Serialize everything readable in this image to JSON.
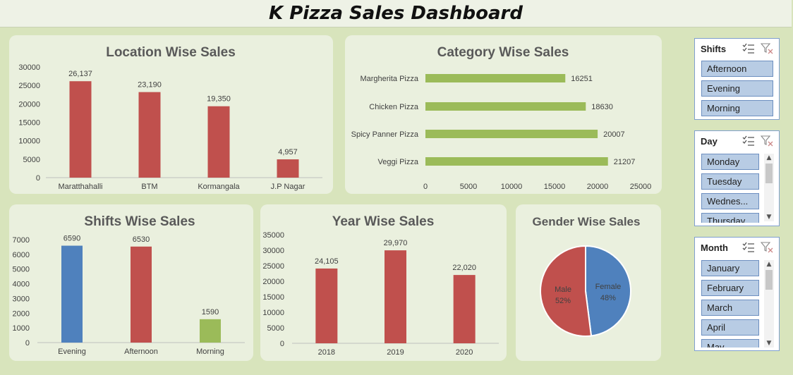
{
  "dashboard_title": "K Pizza Sales Dashboard",
  "chart_data": [
    {
      "id": "location",
      "type": "bar",
      "title": "Location Wise Sales",
      "categories": [
        "Maratthahalli",
        "BTM",
        "Kormangala",
        "J.P Nagar"
      ],
      "values": [
        26137,
        23190,
        19350,
        4957
      ],
      "value_labels": [
        "26,137",
        "23,190",
        "19,350",
        "4,957"
      ],
      "yticks": [
        "0",
        "5000",
        "10000",
        "15000",
        "20000",
        "25000",
        "30000"
      ],
      "ylim": [
        0,
        30000
      ],
      "colors": [
        "#c0504d",
        "#c0504d",
        "#c0504d",
        "#c0504d"
      ]
    },
    {
      "id": "category",
      "type": "bar",
      "orientation": "horizontal",
      "title": "Category Wise Sales",
      "categories": [
        "Margherita Pizza",
        "Chicken Pizza",
        "Spicy Panner Pizza",
        "Veggi Pizza"
      ],
      "values": [
        16251,
        18630,
        20007,
        21207
      ],
      "value_labels": [
        "16251",
        "18630",
        "20007",
        "21207"
      ],
      "xticks": [
        "0",
        "5000",
        "10000",
        "15000",
        "20000",
        "25000"
      ],
      "xlim": [
        0,
        25000
      ],
      "color": "#9bbb59"
    },
    {
      "id": "shifts",
      "type": "bar",
      "title": "Shifts Wise Sales",
      "categories": [
        "Evening",
        "Afternoon",
        "Morning"
      ],
      "values": [
        6590,
        6530,
        1590
      ],
      "value_labels": [
        "6590",
        "6530",
        "1590"
      ],
      "yticks": [
        "0",
        "1000",
        "2000",
        "3000",
        "4000",
        "5000",
        "6000",
        "7000"
      ],
      "ylim": [
        0,
        7000
      ],
      "colors": [
        "#4f81bd",
        "#c0504d",
        "#9bbb59"
      ]
    },
    {
      "id": "year",
      "type": "bar",
      "title": "Year Wise Sales",
      "categories": [
        "2018",
        "2019",
        "2020"
      ],
      "values": [
        24105,
        29970,
        22020
      ],
      "value_labels": [
        "24,105",
        "29,970",
        "22,020"
      ],
      "yticks": [
        "0",
        "5000",
        "10000",
        "15000",
        "20000",
        "25000",
        "30000",
        "35000"
      ],
      "ylim": [
        0,
        35000
      ],
      "colors": [
        "#c0504d",
        "#c0504d",
        "#c0504d"
      ]
    },
    {
      "id": "gender",
      "type": "pie",
      "title": "Gender Wise Sales",
      "slices": [
        {
          "name": "Female",
          "value": 48,
          "label": "48%",
          "color": "#4f81bd"
        },
        {
          "name": "Male",
          "value": 52,
          "label": "52%",
          "color": "#c0504d"
        }
      ]
    }
  ],
  "slicers": {
    "shifts": {
      "title": "Shifts",
      "items": [
        "Afternoon",
        "Evening",
        "Morning"
      ]
    },
    "day": {
      "title": "Day",
      "items": [
        "Monday",
        "Tuesday",
        "Wednes...",
        "Thursday"
      ]
    },
    "month": {
      "title": "Month",
      "items": [
        "January",
        "February",
        "March",
        "April",
        "May"
      ]
    }
  },
  "icons": {
    "multi_select": "multi-select-icon",
    "clear_filter": "clear-filter-icon"
  }
}
